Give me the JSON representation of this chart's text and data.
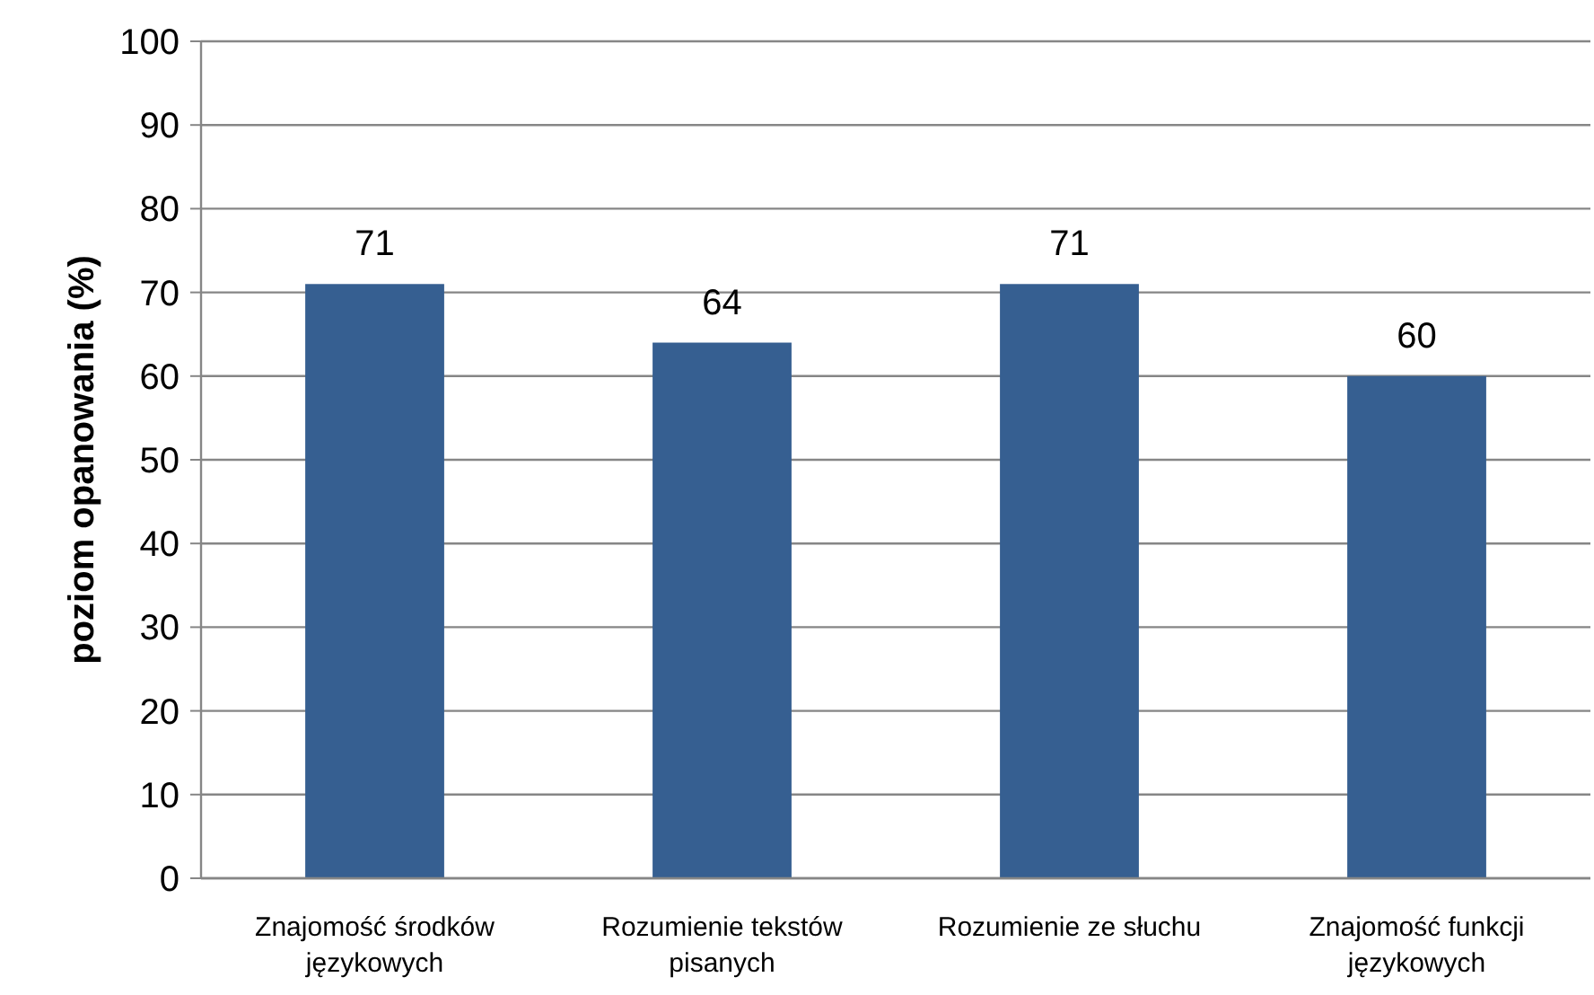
{
  "chart_data": {
    "type": "bar",
    "ylabel": "poziom opanowania (%)",
    "categories": [
      "Znajomość środków językowych",
      "Rozumienie tekstów pisanych",
      "Rozumienie ze słuchu",
      "Znajomość funkcji językowych"
    ],
    "values": [
      71,
      64,
      71,
      60
    ],
    "color": "#365f91",
    "ylim": [
      0,
      100
    ],
    "yticks": [
      0,
      10,
      20,
      30,
      40,
      50,
      60,
      70,
      80,
      90,
      100
    ],
    "grid": "y",
    "data_labels": true
  }
}
